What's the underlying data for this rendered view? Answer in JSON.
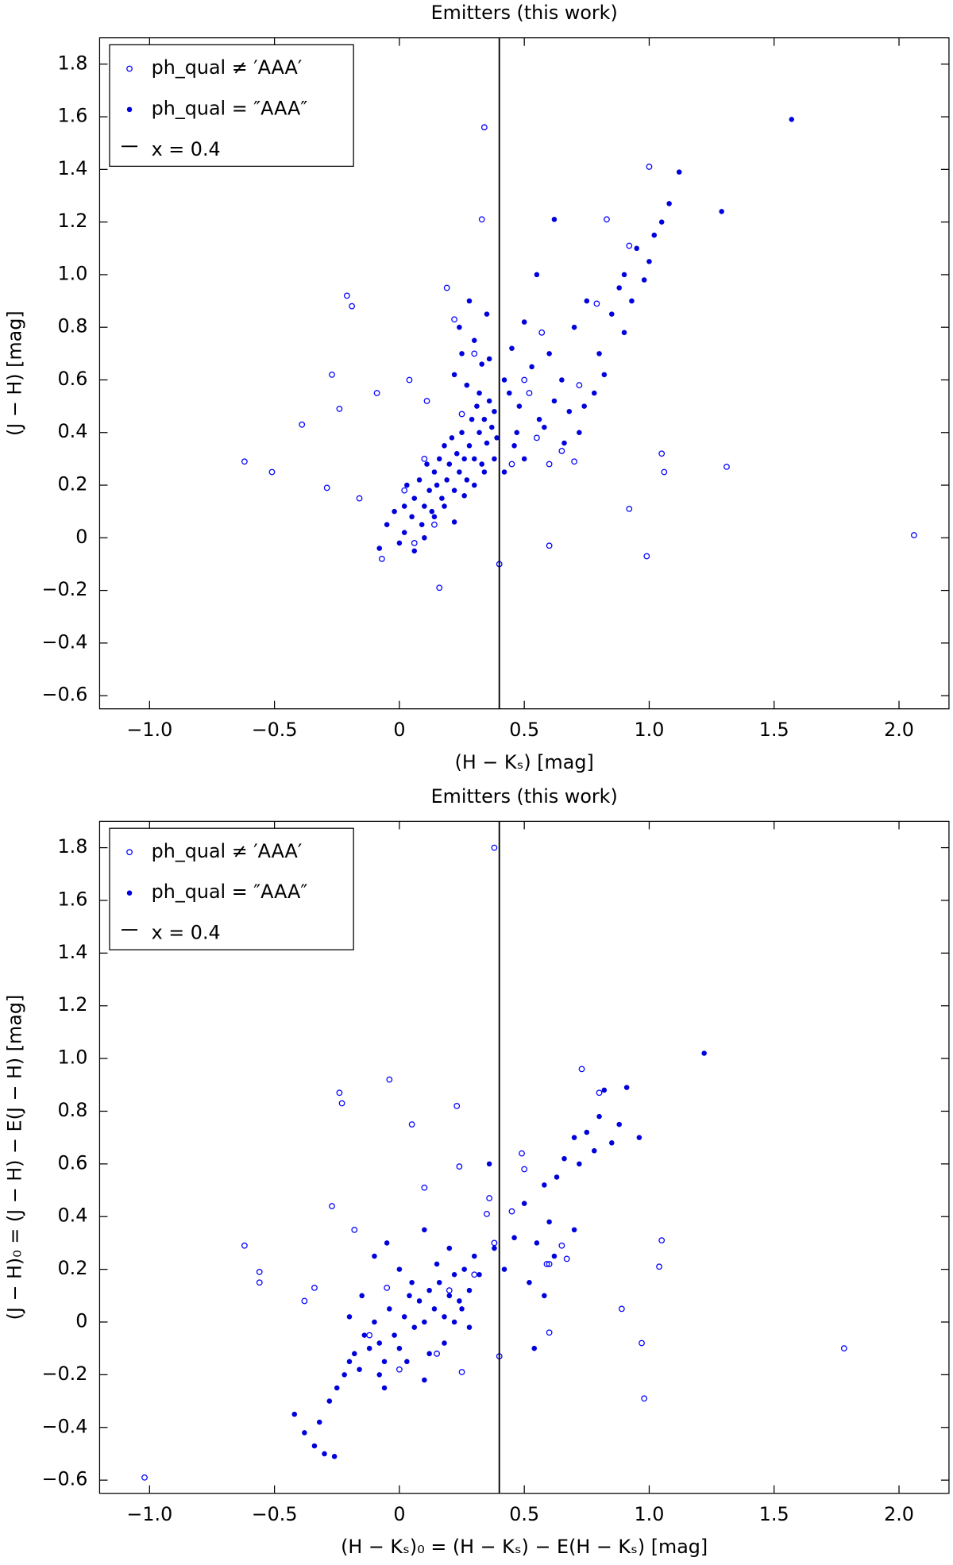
{
  "chart_data": [
    {
      "type": "scatter",
      "title": "Emitters (this work)",
      "xlabel": "(H − Kₛ) [mag]",
      "ylabel": "(J − H) [mag]",
      "xlim": [
        -1.2,
        2.2
      ],
      "ylim": [
        -0.65,
        1.9
      ],
      "xticks": [
        {
          "value": -1.0,
          "label": "−1.0"
        },
        {
          "value": -0.5,
          "label": "−0.5"
        },
        0,
        0.5,
        {
          "value": 1.0,
          "label": "1.0"
        },
        1.5,
        {
          "value": 2.0,
          "label": "2.0"
        }
      ],
      "yticks": [
        {
          "value": -0.6,
          "label": "−0.6"
        },
        {
          "value": -0.4,
          "label": "−0.4"
        },
        {
          "value": -0.2,
          "label": "−0.2"
        },
        0,
        0.2,
        0.4,
        0.6,
        0.8,
        {
          "value": 1.0,
          "label": "1.0"
        },
        1.2,
        1.4,
        1.6,
        1.8
      ],
      "vline": 0.4,
      "vline_label": "x = 0.4",
      "legend": "upper left",
      "series": [
        {
          "name": "ph_qual ≠ ′AAA′",
          "color": "#0000ff",
          "marker": "open",
          "x": [
            -0.62,
            -0.51,
            -0.39,
            -0.29,
            -0.27,
            -0.24,
            -0.21,
            -0.19,
            -0.16,
            -0.09,
            -0.07,
            0.04,
            0.11,
            0.19,
            0.16,
            0.22,
            0.25,
            0.34,
            0.33,
            0.4,
            0.6,
            0.99,
            0.92,
            1.05,
            1.06,
            1.31,
            2.06,
            1.0,
            0.83,
            0.92,
            0.79,
            0.57,
            0.5,
            0.7,
            0.65,
            0.55,
            0.06,
            0.02,
            0.1,
            0.14,
            0.3,
            0.45,
            0.6,
            0.72,
            0.52
          ],
          "y": [
            0.29,
            0.25,
            0.43,
            0.19,
            0.62,
            0.49,
            0.92,
            0.88,
            0.15,
            0.55,
            -0.08,
            0.6,
            0.52,
            0.95,
            -0.19,
            0.83,
            0.47,
            1.56,
            1.21,
            -0.1,
            -0.03,
            -0.07,
            0.11,
            0.32,
            0.25,
            0.27,
            0.01,
            1.41,
            1.21,
            1.11,
            0.89,
            0.78,
            0.6,
            0.29,
            0.33,
            0.38,
            -0.02,
            0.18,
            0.3,
            0.05,
            0.7,
            0.28,
            0.28,
            0.58,
            0.55
          ]
        },
        {
          "name": "ph_qual = ″AAA″",
          "color": "#0000dd",
          "marker": "filled",
          "x": [
            -0.08,
            -0.05,
            -0.02,
            0.0,
            0.02,
            0.03,
            0.05,
            0.06,
            0.08,
            0.09,
            0.1,
            0.11,
            0.12,
            0.13,
            0.14,
            0.15,
            0.16,
            0.17,
            0.18,
            0.19,
            0.2,
            0.21,
            0.22,
            0.23,
            0.24,
            0.25,
            0.26,
            0.27,
            0.28,
            0.29,
            0.3,
            0.31,
            0.32,
            0.33,
            0.34,
            0.35,
            0.36,
            0.37,
            0.38,
            0.39,
            0.02,
            0.06,
            0.1,
            0.14,
            0.18,
            0.22,
            0.26,
            0.3,
            0.34,
            0.38,
            0.22,
            0.25,
            0.27,
            0.3,
            0.33,
            0.35,
            0.24,
            0.28,
            0.32,
            0.36,
            0.42,
            0.45,
            0.48,
            0.5,
            0.53,
            0.56,
            0.6,
            0.62,
            0.65,
            0.68,
            0.7,
            0.72,
            0.75,
            0.78,
            0.8,
            0.85,
            0.88,
            0.9,
            0.93,
            0.95,
            0.98,
            1.0,
            1.02,
            1.05,
            1.08,
            1.12,
            1.29,
            1.57,
            0.62,
            0.55,
            0.46,
            0.44,
            0.5,
            0.58,
            0.66,
            0.74,
            0.82,
            0.9,
            0.42,
            0.47
          ],
          "y": [
            -0.04,
            0.05,
            0.1,
            -0.02,
            0.12,
            0.2,
            0.08,
            0.15,
            0.22,
            0.05,
            0.12,
            0.28,
            0.18,
            0.1,
            0.25,
            0.2,
            0.3,
            0.15,
            0.35,
            0.22,
            0.28,
            0.38,
            0.18,
            0.32,
            0.25,
            0.4,
            0.3,
            0.22,
            0.35,
            0.45,
            0.3,
            0.5,
            0.4,
            0.28,
            0.45,
            0.36,
            0.52,
            0.42,
            0.48,
            0.38,
            0.02,
            -0.05,
            0.0,
            0.08,
            0.12,
            0.06,
            0.16,
            0.2,
            0.25,
            0.3,
            0.62,
            0.7,
            0.58,
            0.75,
            0.66,
            0.85,
            0.8,
            0.9,
            0.55,
            0.68,
            0.6,
            0.72,
            0.5,
            0.82,
            0.65,
            0.45,
            0.7,
            0.52,
            0.6,
            0.48,
            0.8,
            0.4,
            0.9,
            0.55,
            0.7,
            0.85,
            0.95,
            1.0,
            0.9,
            1.1,
            0.98,
            1.05,
            1.15,
            1.2,
            1.27,
            1.39,
            1.24,
            1.59,
            1.21,
            1.0,
            0.35,
            0.55,
            0.3,
            0.42,
            0.36,
            0.5,
            0.62,
            0.78,
            0.25,
            0.4
          ]
        }
      ]
    },
    {
      "type": "scatter",
      "title": "Emitters (this work)",
      "xlabel": "(H − Kₛ)₀ = (H − Kₛ) − E(H − Kₛ) [mag]",
      "ylabel": "(J − H)₀ = (J − H) − E(J − H) [mag]",
      "xlim": [
        -1.2,
        2.2
      ],
      "ylim": [
        -0.65,
        1.9
      ],
      "xticks": [
        {
          "value": -1.0,
          "label": "−1.0"
        },
        {
          "value": -0.5,
          "label": "−0.5"
        },
        0,
        0.5,
        {
          "value": 1.0,
          "label": "1.0"
        },
        1.5,
        {
          "value": 2.0,
          "label": "2.0"
        }
      ],
      "yticks": [
        {
          "value": -0.6,
          "label": "−0.6"
        },
        {
          "value": -0.4,
          "label": "−0.4"
        },
        {
          "value": -0.2,
          "label": "−0.2"
        },
        0,
        0.2,
        0.4,
        0.6,
        0.8,
        {
          "value": 1.0,
          "label": "1.0"
        },
        1.2,
        1.4,
        1.6,
        1.8
      ],
      "vline": 0.4,
      "vline_label": "x = 0.4",
      "legend": "upper left",
      "series": [
        {
          "name": "ph_qual ≠ ′AAA′",
          "color": "#0000ff",
          "marker": "open",
          "x": [
            -1.02,
            -0.62,
            -0.56,
            -0.56,
            -0.38,
            -0.34,
            -0.27,
            -0.24,
            -0.23,
            -0.18,
            -0.05,
            -0.04,
            0.05,
            0.1,
            0.23,
            0.24,
            0.35,
            0.36,
            0.38,
            0.4,
            0.49,
            0.5,
            0.59,
            0.6,
            0.6,
            0.65,
            0.67,
            0.73,
            0.8,
            0.89,
            0.97,
            0.98,
            1.04,
            1.05,
            0.45,
            0.3,
            0.15,
            0.0,
            -0.12,
            0.25,
            0.2,
            0.38,
            1.78
          ],
          "y": [
            -0.59,
            0.29,
            0.19,
            0.15,
            0.08,
            0.13,
            0.44,
            0.87,
            0.83,
            0.35,
            0.13,
            0.92,
            0.75,
            0.51,
            0.82,
            0.59,
            0.41,
            0.47,
            1.8,
            -0.13,
            0.64,
            0.58,
            0.22,
            -0.04,
            0.22,
            0.29,
            0.24,
            0.96,
            0.87,
            0.05,
            -0.08,
            -0.29,
            0.21,
            0.31,
            0.42,
            0.18,
            -0.12,
            -0.18,
            -0.05,
            -0.19,
            0.12,
            0.3,
            -0.1
          ]
        },
        {
          "name": "ph_qual = ″AAA″",
          "color": "#0000dd",
          "marker": "filled",
          "x": [
            -0.42,
            -0.38,
            -0.34,
            -0.32,
            -0.3,
            -0.28,
            -0.26,
            -0.25,
            -0.22,
            -0.2,
            -0.18,
            -0.16,
            -0.14,
            -0.12,
            -0.1,
            -0.08,
            -0.06,
            -0.04,
            -0.02,
            0.0,
            0.02,
            0.04,
            0.06,
            0.08,
            0.1,
            0.12,
            0.14,
            0.16,
            0.18,
            0.2,
            0.22,
            0.24,
            0.26,
            0.28,
            0.3,
            0.32,
            -0.1,
            -0.05,
            0.0,
            0.05,
            0.1,
            0.15,
            0.2,
            0.25,
            -0.15,
            -0.08,
            0.03,
            0.12,
            0.18,
            0.28,
            0.36,
            0.38,
            0.42,
            0.46,
            0.5,
            0.55,
            0.58,
            0.6,
            0.63,
            0.66,
            0.7,
            0.72,
            0.75,
            0.78,
            0.8,
            0.82,
            0.85,
            0.88,
            0.91,
            0.96,
            1.22,
            0.58,
            0.54,
            0.52,
            0.62,
            0.7,
            -0.06,
            0.1,
            0.22,
            -0.2
          ],
          "y": [
            -0.35,
            -0.42,
            -0.47,
            -0.38,
            -0.5,
            -0.3,
            -0.51,
            -0.25,
            -0.2,
            -0.15,
            -0.12,
            -0.18,
            -0.05,
            -0.1,
            0.0,
            -0.08,
            -0.15,
            0.05,
            -0.05,
            -0.1,
            0.02,
            0.1,
            -0.02,
            0.08,
            0.0,
            0.12,
            0.05,
            0.15,
            0.02,
            0.1,
            0.18,
            0.08,
            0.2,
            0.12,
            0.25,
            0.18,
            0.25,
            0.3,
            0.2,
            0.15,
            0.35,
            0.22,
            0.28,
            0.05,
            0.1,
            -0.2,
            -0.15,
            -0.12,
            -0.08,
            -0.02,
            0.6,
            0.28,
            0.2,
            0.32,
            0.45,
            0.3,
            0.52,
            0.38,
            0.55,
            0.62,
            0.7,
            0.6,
            0.72,
            0.65,
            0.78,
            0.88,
            0.68,
            0.75,
            0.89,
            0.7,
            1.02,
            0.1,
            -0.1,
            0.15,
            0.25,
            0.35,
            -0.25,
            -0.22,
            0.0,
            0.02
          ]
        }
      ]
    }
  ]
}
